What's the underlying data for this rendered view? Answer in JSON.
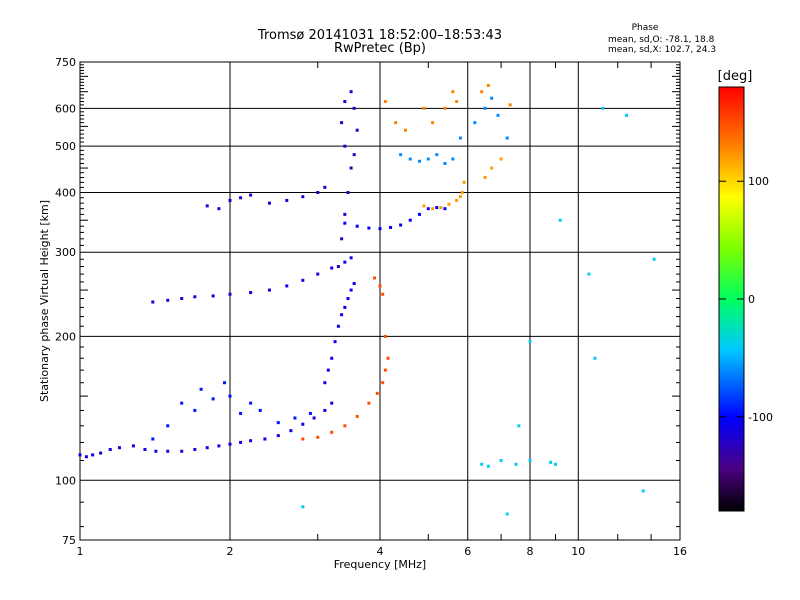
{
  "chart_data": {
    "type": "scatter",
    "title": "Tromsø 20141031 18:52:00–18:53:43",
    "subtitle": "RwPretec (Bp)",
    "xlabel": "Frequency [MHz]",
    "ylabel": "Stationary phase Virtual Height [km]",
    "x_scale": "log",
    "y_scale": "log",
    "xlim": [
      1,
      16
    ],
    "ylim": [
      75,
      750
    ],
    "x_ticks": [
      1,
      2,
      4,
      6,
      8,
      10,
      16
    ],
    "x_tick_labels": [
      "1",
      "2",
      "4",
      "6",
      "8",
      "10",
      "16"
    ],
    "x_major_grid": [
      2,
      4,
      6,
      8,
      10
    ],
    "y_ticks": [
      75,
      100,
      200,
      300,
      400,
      500,
      600,
      750
    ],
    "y_tick_labels": [
      "75",
      "100",
      "200",
      "300",
      "400",
      "500",
      "600",
      "750"
    ],
    "y_major_grid": [
      100,
      200,
      300,
      400,
      500,
      600
    ],
    "grid": true,
    "stats": {
      "header": "Phase",
      "line_o": "mean, sd,O: -78.1, 18.8",
      "line_x": "mean, sd,X: 102.7, 24.3"
    },
    "colorbar": {
      "label": "[deg]",
      "min": -180,
      "max": 180,
      "ticks": [
        100,
        0,
        -100
      ],
      "tick_labels": [
        "100",
        "0",
        "-100"
      ],
      "colormap": "rainbow"
    },
    "series": [
      {
        "trace": "f1 lower O",
        "phase": -110,
        "points": [
          [
            1.0,
            113
          ],
          [
            1.03,
            112
          ],
          [
            1.06,
            113
          ],
          [
            1.1,
            114
          ],
          [
            1.15,
            116
          ],
          [
            1.2,
            117
          ],
          [
            1.28,
            118
          ],
          [
            1.35,
            116
          ],
          [
            1.42,
            115
          ],
          [
            1.5,
            115
          ],
          [
            1.6,
            115
          ],
          [
            1.7,
            116
          ],
          [
            1.8,
            117
          ],
          [
            1.9,
            118
          ],
          [
            2.0,
            119
          ],
          [
            2.1,
            120
          ],
          [
            2.2,
            121
          ],
          [
            2.35,
            122
          ],
          [
            2.5,
            124
          ],
          [
            2.65,
            127
          ],
          [
            2.8,
            131
          ],
          [
            2.95,
            135
          ],
          [
            3.1,
            140
          ],
          [
            3.2,
            145
          ]
        ]
      },
      {
        "trace": "f1 scatter O",
        "phase": -95,
        "points": [
          [
            1.4,
            122
          ],
          [
            1.5,
            130
          ],
          [
            1.6,
            145
          ],
          [
            1.7,
            140
          ],
          [
            1.75,
            155
          ],
          [
            1.85,
            148
          ],
          [
            1.95,
            160
          ],
          [
            2.0,
            150
          ],
          [
            2.1,
            138
          ],
          [
            2.2,
            145
          ],
          [
            2.3,
            140
          ],
          [
            2.5,
            132
          ],
          [
            2.7,
            135
          ],
          [
            2.9,
            138
          ]
        ]
      },
      {
        "trace": "f1 cusp O",
        "phase": -105,
        "points": [
          [
            3.1,
            160
          ],
          [
            3.15,
            170
          ],
          [
            3.2,
            180
          ],
          [
            3.25,
            195
          ],
          [
            3.3,
            210
          ],
          [
            3.35,
            222
          ],
          [
            3.4,
            230
          ],
          [
            3.45,
            240
          ],
          [
            3.5,
            250
          ],
          [
            3.55,
            258
          ]
        ]
      },
      {
        "trace": "f1 cusp X",
        "phase": 150,
        "points": [
          [
            2.8,
            122
          ],
          [
            3.0,
            123
          ],
          [
            3.2,
            126
          ],
          [
            3.4,
            130
          ],
          [
            3.6,
            136
          ],
          [
            3.8,
            145
          ],
          [
            3.95,
            152
          ],
          [
            4.05,
            160
          ],
          [
            4.1,
            170
          ],
          [
            4.15,
            180
          ],
          [
            4.1,
            200
          ],
          [
            4.05,
            245
          ],
          [
            4.0,
            255
          ],
          [
            3.9,
            265
          ]
        ]
      },
      {
        "trace": "f2 lower O",
        "phase": -110,
        "points": [
          [
            1.4,
            236
          ],
          [
            1.5,
            238
          ],
          [
            1.6,
            240
          ],
          [
            1.7,
            242
          ],
          [
            1.85,
            243
          ],
          [
            2.0,
            245
          ],
          [
            2.2,
            247
          ],
          [
            2.4,
            250
          ],
          [
            2.6,
            255
          ],
          [
            2.8,
            262
          ],
          [
            3.0,
            270
          ],
          [
            3.2,
            278
          ],
          [
            3.4,
            286
          ],
          [
            3.5,
            292
          ]
        ]
      },
      {
        "trace": "f2 spread O",
        "phase": -115,
        "points": [
          [
            1.8,
            375
          ],
          [
            1.9,
            370
          ],
          [
            2.0,
            385
          ],
          [
            2.1,
            390
          ],
          [
            2.2,
            395
          ],
          [
            2.4,
            380
          ],
          [
            2.6,
            385
          ],
          [
            2.8,
            392
          ],
          [
            3.0,
            400
          ],
          [
            3.1,
            410
          ]
        ]
      },
      {
        "trace": "f2 vertical O",
        "phase": -120,
        "points": [
          [
            3.3,
            280
          ],
          [
            3.35,
            320
          ],
          [
            3.4,
            360
          ],
          [
            3.45,
            400
          ],
          [
            3.5,
            450
          ],
          [
            3.4,
            500
          ],
          [
            3.35,
            560
          ],
          [
            3.4,
            620
          ],
          [
            3.5,
            650
          ],
          [
            3.55,
            600
          ],
          [
            3.6,
            540
          ],
          [
            3.55,
            480
          ]
        ]
      },
      {
        "trace": "f2 upper O",
        "phase": -100,
        "points": [
          [
            3.4,
            345
          ],
          [
            3.6,
            340
          ],
          [
            3.8,
            337
          ],
          [
            4.0,
            336
          ],
          [
            4.2,
            338
          ],
          [
            4.4,
            342
          ],
          [
            4.6,
            350
          ],
          [
            4.8,
            360
          ],
          [
            5.0,
            370
          ],
          [
            5.2,
            372
          ],
          [
            5.4,
            370
          ]
        ]
      },
      {
        "trace": "f2 upper X",
        "phase": 120,
        "points": [
          [
            4.9,
            375
          ],
          [
            5.1,
            370
          ],
          [
            5.3,
            372
          ],
          [
            5.5,
            378
          ],
          [
            5.7,
            385
          ],
          [
            5.8,
            392
          ],
          [
            5.85,
            400
          ],
          [
            5.9,
            420
          ],
          [
            6.5,
            430
          ],
          [
            6.7,
            450
          ],
          [
            7.0,
            470
          ]
        ]
      },
      {
        "trace": "spread F O",
        "phase": -60,
        "points": [
          [
            4.4,
            480
          ],
          [
            4.6,
            470
          ],
          [
            4.8,
            465
          ],
          [
            5.0,
            470
          ],
          [
            5.2,
            480
          ],
          [
            5.4,
            460
          ],
          [
            5.6,
            470
          ],
          [
            5.8,
            520
          ],
          [
            6.2,
            560
          ],
          [
            6.5,
            600
          ],
          [
            6.7,
            630
          ],
          [
            6.9,
            580
          ],
          [
            7.2,
            520
          ]
        ]
      },
      {
        "trace": "spread F X",
        "phase": 130,
        "points": [
          [
            4.1,
            620
          ],
          [
            4.3,
            560
          ],
          [
            4.5,
            540
          ],
          [
            4.9,
            600
          ],
          [
            5.1,
            560
          ],
          [
            5.4,
            600
          ],
          [
            5.6,
            650
          ],
          [
            5.7,
            620
          ],
          [
            6.4,
            650
          ],
          [
            6.6,
            670
          ],
          [
            7.3,
            610
          ]
        ]
      },
      {
        "trace": "noise",
        "phase": -40,
        "points": [
          [
            6.4,
            108
          ],
          [
            6.6,
            107
          ],
          [
            7.0,
            110
          ],
          [
            7.5,
            108
          ],
          [
            8.0,
            110
          ],
          [
            8.8,
            109
          ],
          [
            9.0,
            108
          ],
          [
            7.6,
            130
          ],
          [
            8.0,
            195
          ],
          [
            9.2,
            350
          ],
          [
            10.5,
            270
          ],
          [
            10.8,
            180
          ],
          [
            11.2,
            600
          ],
          [
            12.5,
            580
          ],
          [
            13.5,
            95
          ],
          [
            2.8,
            88
          ],
          [
            7.2,
            85
          ],
          [
            14.2,
            290
          ]
        ]
      }
    ]
  }
}
